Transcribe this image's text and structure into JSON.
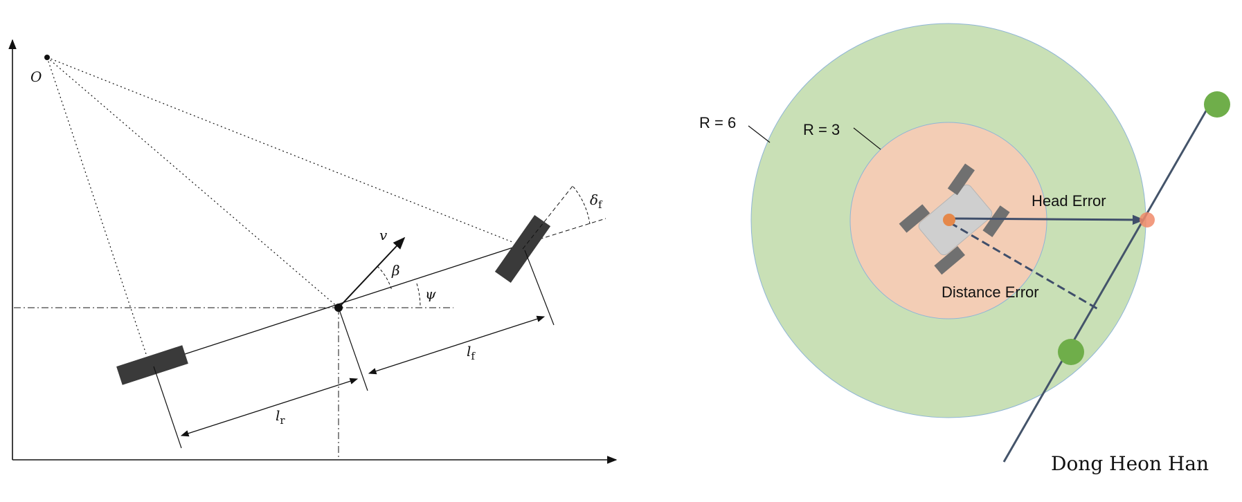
{
  "bicycle_model": {
    "origin_label": "O",
    "velocity_label": "v",
    "slip_angle_label": "β",
    "yaw_angle_label": "ψ",
    "steer_symbol": "δ",
    "steer_subscript": "f",
    "front_length_symbol": "l",
    "front_length_subscript": "f",
    "rear_length_symbol": "l",
    "rear_length_subscript": "r"
  },
  "tracking_diagram": {
    "outer_circle_label": "R = 6",
    "inner_circle_label": "R = 3",
    "head_error_label": "Head Error",
    "distance_error_label": "Distance Error",
    "author": "Dong Heon Han",
    "colors": {
      "outer_circle": "#c9e0b6",
      "inner_circle": "#f3cdb5",
      "waypoint": "#6fae4a",
      "lookahead_point": "#f08a6a",
      "vehicle_center": "#e5884a",
      "path_line": "#44546a"
    }
  }
}
